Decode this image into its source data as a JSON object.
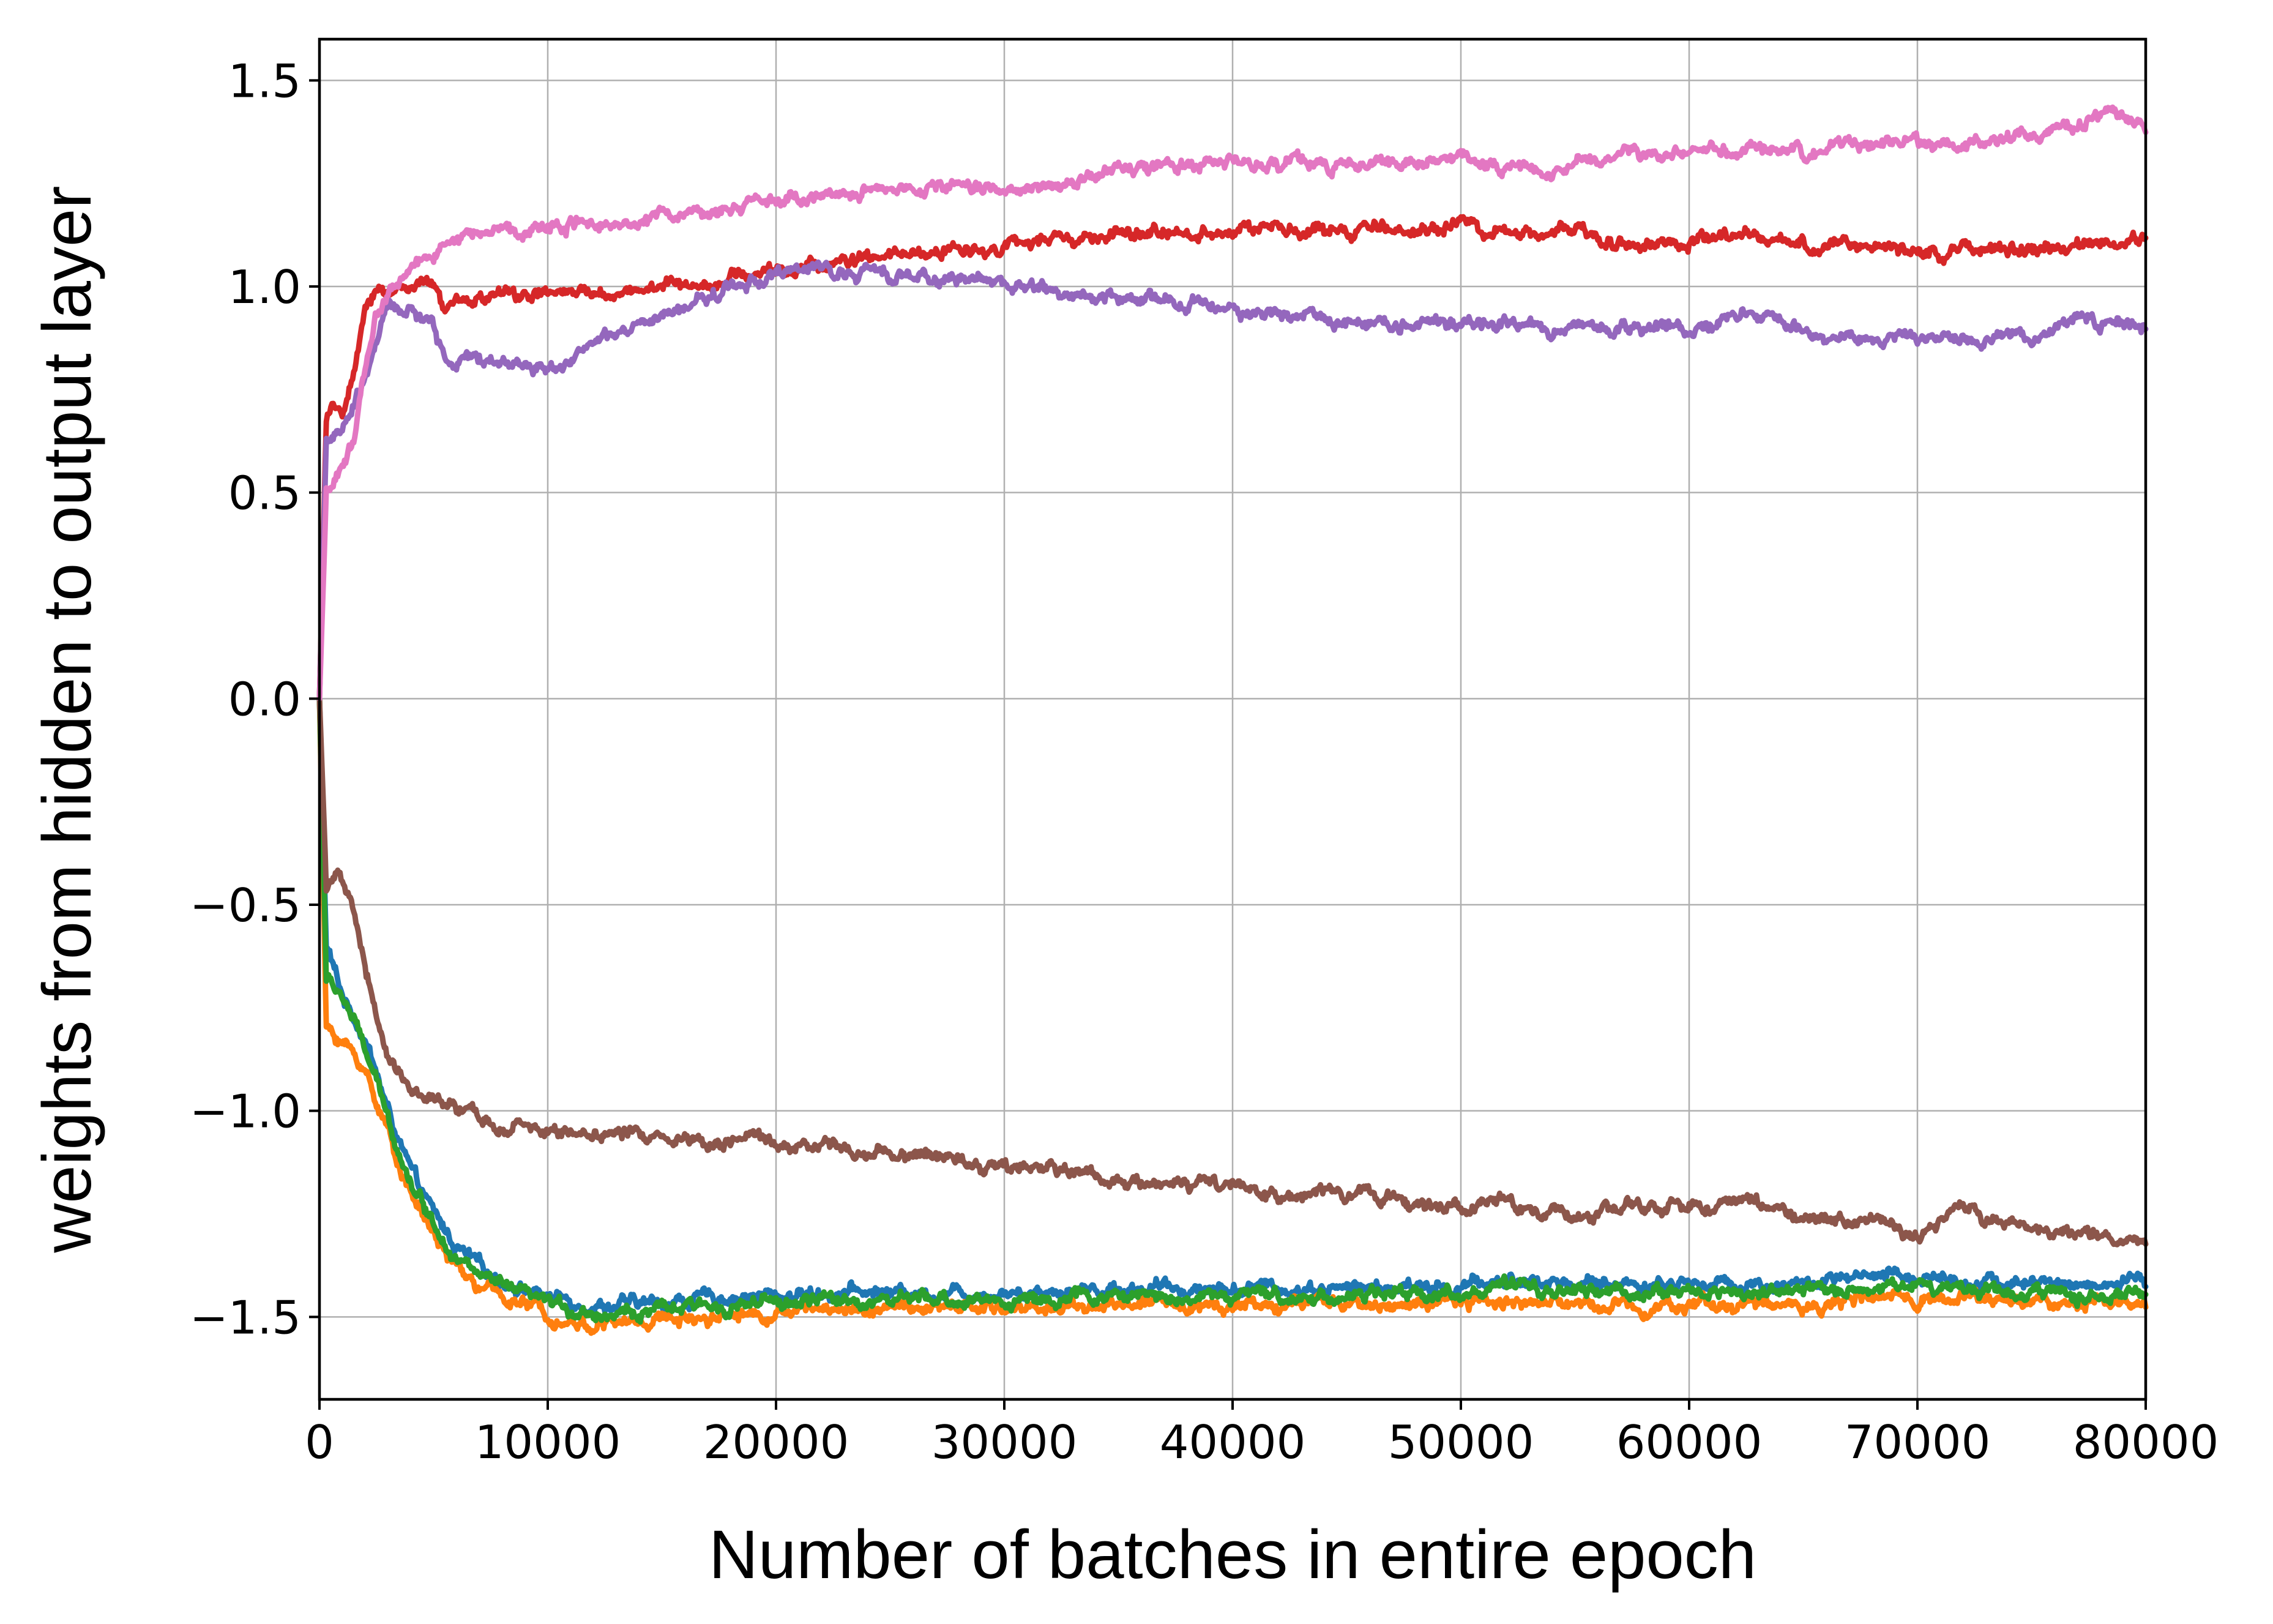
{
  "chart_data": {
    "type": "line",
    "title": "",
    "xlabel": "Number of batches in entire epoch",
    "ylabel": "weights from hidden to output layer",
    "xlim": [
      0,
      80000
    ],
    "ylim": [
      -1.7,
      1.6
    ],
    "xticks": [
      0,
      10000,
      20000,
      30000,
      40000,
      50000,
      60000,
      70000,
      80000
    ],
    "xtick_labels": [
      "0",
      "10000",
      "20000",
      "30000",
      "40000",
      "50000",
      "60000",
      "70000",
      "80000"
    ],
    "yticks": [
      -1.5,
      -1.0,
      -0.5,
      0.0,
      0.5,
      1.0,
      1.5
    ],
    "ytick_labels": [
      "−1.5",
      "−1.0",
      "−0.5",
      "0.0",
      "0.5",
      "1.0",
      "1.5"
    ],
    "grid": true,
    "legend": "none",
    "series": [
      {
        "color": "#1f77b4",
        "x": [
          0,
          300,
          1000,
          2000,
          3000,
          4000,
          5000,
          6000,
          7000,
          8000,
          9000,
          10000,
          11000,
          12000,
          14000,
          16000,
          18000,
          20000,
          22000,
          25000,
          28000,
          30000,
          35000,
          40000,
          45000,
          50000,
          52000,
          55000,
          60000,
          65000,
          70000,
          75000,
          78000,
          80000
        ],
        "y": [
          0.0,
          -0.6,
          -0.72,
          -0.82,
          -1.0,
          -1.15,
          -1.25,
          -1.33,
          -1.38,
          -1.41,
          -1.43,
          -1.45,
          -1.46,
          -1.47,
          -1.47,
          -1.46,
          -1.45,
          -1.45,
          -1.44,
          -1.44,
          -1.44,
          -1.44,
          -1.43,
          -1.43,
          -1.43,
          -1.43,
          -1.41,
          -1.42,
          -1.42,
          -1.42,
          -1.4,
          -1.42,
          -1.42,
          -1.42
        ]
      },
      {
        "color": "#ff7f0e",
        "x": [
          0,
          300,
          1000,
          2000,
          3000,
          4000,
          5000,
          6000,
          7000,
          8000,
          9000,
          10000,
          11000,
          12000,
          14000,
          16000,
          18000,
          20000,
          22000,
          25000,
          28000,
          30000,
          35000,
          40000,
          45000,
          50000,
          52000,
          55000,
          60000,
          65000,
          70000,
          75000,
          78000,
          80000
        ],
        "y": [
          0.0,
          -0.8,
          -0.83,
          -0.9,
          -1.05,
          -1.2,
          -1.3,
          -1.38,
          -1.43,
          -1.45,
          -1.47,
          -1.49,
          -1.51,
          -1.52,
          -1.51,
          -1.5,
          -1.49,
          -1.49,
          -1.48,
          -1.48,
          -1.48,
          -1.48,
          -1.47,
          -1.47,
          -1.47,
          -1.47,
          -1.46,
          -1.47,
          -1.47,
          -1.47,
          -1.45,
          -1.46,
          -1.47,
          -1.47
        ]
      },
      {
        "color": "#2ca02c",
        "x": [
          0,
          300,
          1000,
          2000,
          3000,
          4000,
          5000,
          6000,
          7000,
          8000,
          9000,
          10000,
          11000,
          12000,
          14000,
          16000,
          18000,
          20000,
          22000,
          25000,
          28000,
          30000,
          35000,
          40000,
          45000,
          50000,
          52000,
          55000,
          60000,
          65000,
          70000,
          75000,
          78000,
          80000
        ],
        "y": [
          0.0,
          -0.68,
          -0.72,
          -0.85,
          -1.02,
          -1.17,
          -1.27,
          -1.35,
          -1.4,
          -1.43,
          -1.45,
          -1.47,
          -1.48,
          -1.49,
          -1.49,
          -1.48,
          -1.47,
          -1.47,
          -1.46,
          -1.46,
          -1.46,
          -1.46,
          -1.45,
          -1.45,
          -1.45,
          -1.44,
          -1.43,
          -1.44,
          -1.44,
          -1.44,
          -1.42,
          -1.44,
          -1.45,
          -1.45
        ]
      },
      {
        "color": "#d62728",
        "x": [
          0,
          300,
          1000,
          1500,
          2000,
          2500,
          3000,
          4000,
          5000,
          5500,
          6000,
          8000,
          10000,
          12000,
          15000,
          18000,
          20000,
          25000,
          30000,
          35000,
          40000,
          45000,
          50000,
          52000,
          55000,
          57000,
          60000,
          62000,
          65000,
          70000,
          75000,
          80000
        ],
        "y": [
          0.0,
          0.68,
          0.7,
          0.78,
          0.92,
          1.0,
          0.99,
          1.0,
          1.0,
          0.93,
          0.96,
          0.98,
          0.98,
          0.98,
          1.0,
          1.02,
          1.04,
          1.07,
          1.1,
          1.12,
          1.14,
          1.13,
          1.15,
          1.12,
          1.14,
          1.11,
          1.1,
          1.12,
          1.1,
          1.09,
          1.09,
          1.11
        ]
      },
      {
        "color": "#9467bd",
        "x": [
          0,
          300,
          1000,
          2000,
          3000,
          4000,
          5000,
          5500,
          6000,
          8000,
          10000,
          12000,
          15000,
          18000,
          20000,
          22000,
          25000,
          28000,
          30000,
          32000,
          35000,
          38000,
          40000,
          45000,
          50000,
          55000,
          60000,
          62000,
          65000,
          70000,
          75000,
          77000,
          80000
        ],
        "y": [
          0.0,
          0.63,
          0.64,
          0.78,
          0.95,
          0.94,
          0.9,
          0.82,
          0.82,
          0.82,
          0.8,
          0.86,
          0.92,
          1.0,
          1.03,
          1.04,
          1.03,
          1.02,
          1.01,
          0.99,
          0.97,
          0.96,
          0.94,
          0.92,
          0.91,
          0.9,
          0.9,
          0.93,
          0.9,
          0.87,
          0.88,
          0.93,
          0.89
        ]
      },
      {
        "color": "#8c564b",
        "x": [
          0,
          300,
          700,
          1500,
          2000,
          2500,
          3000,
          4000,
          5000,
          6000,
          7000,
          8000,
          10000,
          12000,
          15000,
          18000,
          20000,
          25000,
          30000,
          35000,
          40000,
          42000,
          45000,
          50000,
          55000,
          60000,
          63000,
          65000,
          68000,
          70000,
          72000,
          75000,
          78000,
          80000
        ],
        "y": [
          0.0,
          -0.45,
          -0.42,
          -0.52,
          -0.65,
          -0.78,
          -0.87,
          -0.94,
          -0.98,
          -1.0,
          -1.02,
          -1.04,
          -1.05,
          -1.05,
          -1.06,
          -1.07,
          -1.08,
          -1.1,
          -1.13,
          -1.16,
          -1.19,
          -1.22,
          -1.2,
          -1.23,
          -1.25,
          -1.23,
          -1.22,
          -1.26,
          -1.27,
          -1.3,
          -1.25,
          -1.28,
          -1.31,
          -1.32
        ]
      },
      {
        "color": "#e377c2",
        "x": [
          0,
          300,
          800,
          1500,
          2000,
          2500,
          3000,
          4000,
          5000,
          6000,
          8000,
          10000,
          12000,
          15000,
          20000,
          25000,
          30000,
          35000,
          40000,
          45000,
          50000,
          53000,
          55000,
          60000,
          65000,
          70000,
          75000,
          77000,
          78000,
          80000
        ],
        "y": [
          0.0,
          0.5,
          0.55,
          0.62,
          0.8,
          0.94,
          0.98,
          1.04,
          1.08,
          1.12,
          1.14,
          1.15,
          1.16,
          1.17,
          1.2,
          1.23,
          1.24,
          1.28,
          1.3,
          1.3,
          1.31,
          1.28,
          1.3,
          1.33,
          1.33,
          1.34,
          1.36,
          1.39,
          1.42,
          1.4
        ]
      }
    ]
  }
}
